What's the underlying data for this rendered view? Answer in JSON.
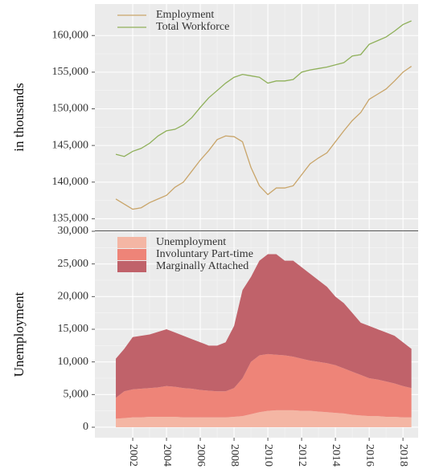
{
  "chart_data": [
    {
      "type": "line",
      "ylabel": "in thousands",
      "grid": true,
      "legend": "top-left",
      "x": [
        2001,
        2001.5,
        2002,
        2002.5,
        2003,
        2003.5,
        2004,
        2004.5,
        2005,
        2005.5,
        2006,
        2006.5,
        2007,
        2007.5,
        2008,
        2008.5,
        2009,
        2009.5,
        2010,
        2010.5,
        2011,
        2011.5,
        2012,
        2012.5,
        2013,
        2013.5,
        2014,
        2014.5,
        2015,
        2015.5,
        2016,
        2016.5,
        2017,
        2017.5,
        2018,
        2018.5
      ],
      "series": [
        {
          "name": "Employment",
          "color": "#c9a56a",
          "values": [
            137700,
            137000,
            136300,
            136500,
            137200,
            137700,
            138200,
            139300,
            140000,
            141500,
            143000,
            144300,
            145800,
            146300,
            146200,
            145500,
            142000,
            139500,
            138300,
            139200,
            139200,
            139500,
            141000,
            142500,
            143300,
            144000,
            145500,
            147000,
            148400,
            149500,
            151300,
            152000,
            152700,
            153800,
            155000,
            155800
          ]
        },
        {
          "name": "Total Workforce",
          "color": "#8fb05a",
          "values": [
            143800,
            143500,
            144200,
            144600,
            145300,
            146300,
            147000,
            147200,
            147800,
            148800,
            150200,
            151500,
            152500,
            153500,
            154300,
            154700,
            154500,
            154300,
            153500,
            153800,
            153800,
            154000,
            155000,
            155300,
            155500,
            155700,
            156000,
            156300,
            157200,
            157400,
            158800,
            159300,
            159800,
            160600,
            161500,
            162000
          ]
        }
      ],
      "xlim": [
        1999.76,
        2018.9
      ],
      "xticks": [
        2002,
        2004,
        2006,
        2008,
        2010,
        2012,
        2014,
        2016,
        2018
      ],
      "ylim": [
        133400,
        164300
      ],
      "yticks": [
        {
          "value": 135000,
          "label": "135,000"
        },
        {
          "value": 140000,
          "label": "140,000"
        },
        {
          "value": 145000,
          "label": "145,000"
        },
        {
          "value": 150000,
          "label": "150,000"
        },
        {
          "value": 155000,
          "label": "155,000"
        },
        {
          "value": 160000,
          "label": "160,000"
        }
      ]
    },
    {
      "type": "area",
      "ylabel": "Unemployment",
      "grid": true,
      "legend": "top-left",
      "stacked": true,
      "x": [
        2001,
        2001.5,
        2002,
        2002.5,
        2003,
        2003.5,
        2004,
        2004.5,
        2005,
        2005.5,
        2006,
        2006.5,
        2007,
        2007.5,
        2008,
        2008.5,
        2009,
        2009.5,
        2010,
        2010.5,
        2011,
        2011.5,
        2012,
        2012.5,
        2013,
        2013.5,
        2014,
        2014.5,
        2015,
        2015.5,
        2016,
        2016.5,
        2017,
        2017.5,
        2018,
        2018.5
      ],
      "series": [
        {
          "name": "Unemployment",
          "color": "#f4b6a4",
          "values": [
            1300,
            1400,
            1500,
            1500,
            1600,
            1600,
            1600,
            1600,
            1500,
            1500,
            1500,
            1500,
            1500,
            1500,
            1600,
            1700,
            2000,
            2300,
            2500,
            2600,
            2600,
            2600,
            2500,
            2500,
            2400,
            2300,
            2200,
            2100,
            1900,
            1800,
            1700,
            1700,
            1600,
            1600,
            1500,
            1500
          ]
        },
        {
          "name": "Involuntary Part-time",
          "color": "#ee8478",
          "values": [
            3200,
            4100,
            4300,
            4400,
            4400,
            4500,
            4700,
            4600,
            4500,
            4400,
            4200,
            4100,
            4000,
            4000,
            4400,
            5800,
            8000,
            8700,
            8700,
            8500,
            8400,
            8200,
            8000,
            7700,
            7600,
            7500,
            7300,
            6900,
            6600,
            6200,
            5800,
            5600,
            5400,
            5100,
            4800,
            4500
          ]
        },
        {
          "name": "Marginally Attached",
          "color": "#c0626a",
          "values": [
            6000,
            6500,
            8000,
            8100,
            8200,
            8500,
            8700,
            8300,
            8000,
            7600,
            7300,
            6900,
            7000,
            7500,
            9500,
            13500,
            13000,
            14500,
            15300,
            15400,
            14500,
            14700,
            14000,
            13300,
            12500,
            11700,
            10500,
            10000,
            9000,
            8000,
            8000,
            7700,
            7500,
            7300,
            6700,
            6000
          ]
        }
      ],
      "xlim": [
        1999.76,
        2018.9
      ],
      "xticks": [
        2002,
        2004,
        2006,
        2008,
        2010,
        2012,
        2014,
        2016,
        2018
      ],
      "ylim": [
        -1600,
        30000
      ],
      "yticks": [
        0,
        {
          "value": 5000,
          "label": "5,000"
        },
        {
          "value": 10000,
          "label": "10,000"
        },
        {
          "value": 15000,
          "label": "15,000"
        },
        {
          "value": 20000,
          "label": "20,000"
        },
        {
          "value": 25000,
          "label": "25,000"
        },
        {
          "value": 30000,
          "label": "30,000"
        }
      ]
    }
  ]
}
